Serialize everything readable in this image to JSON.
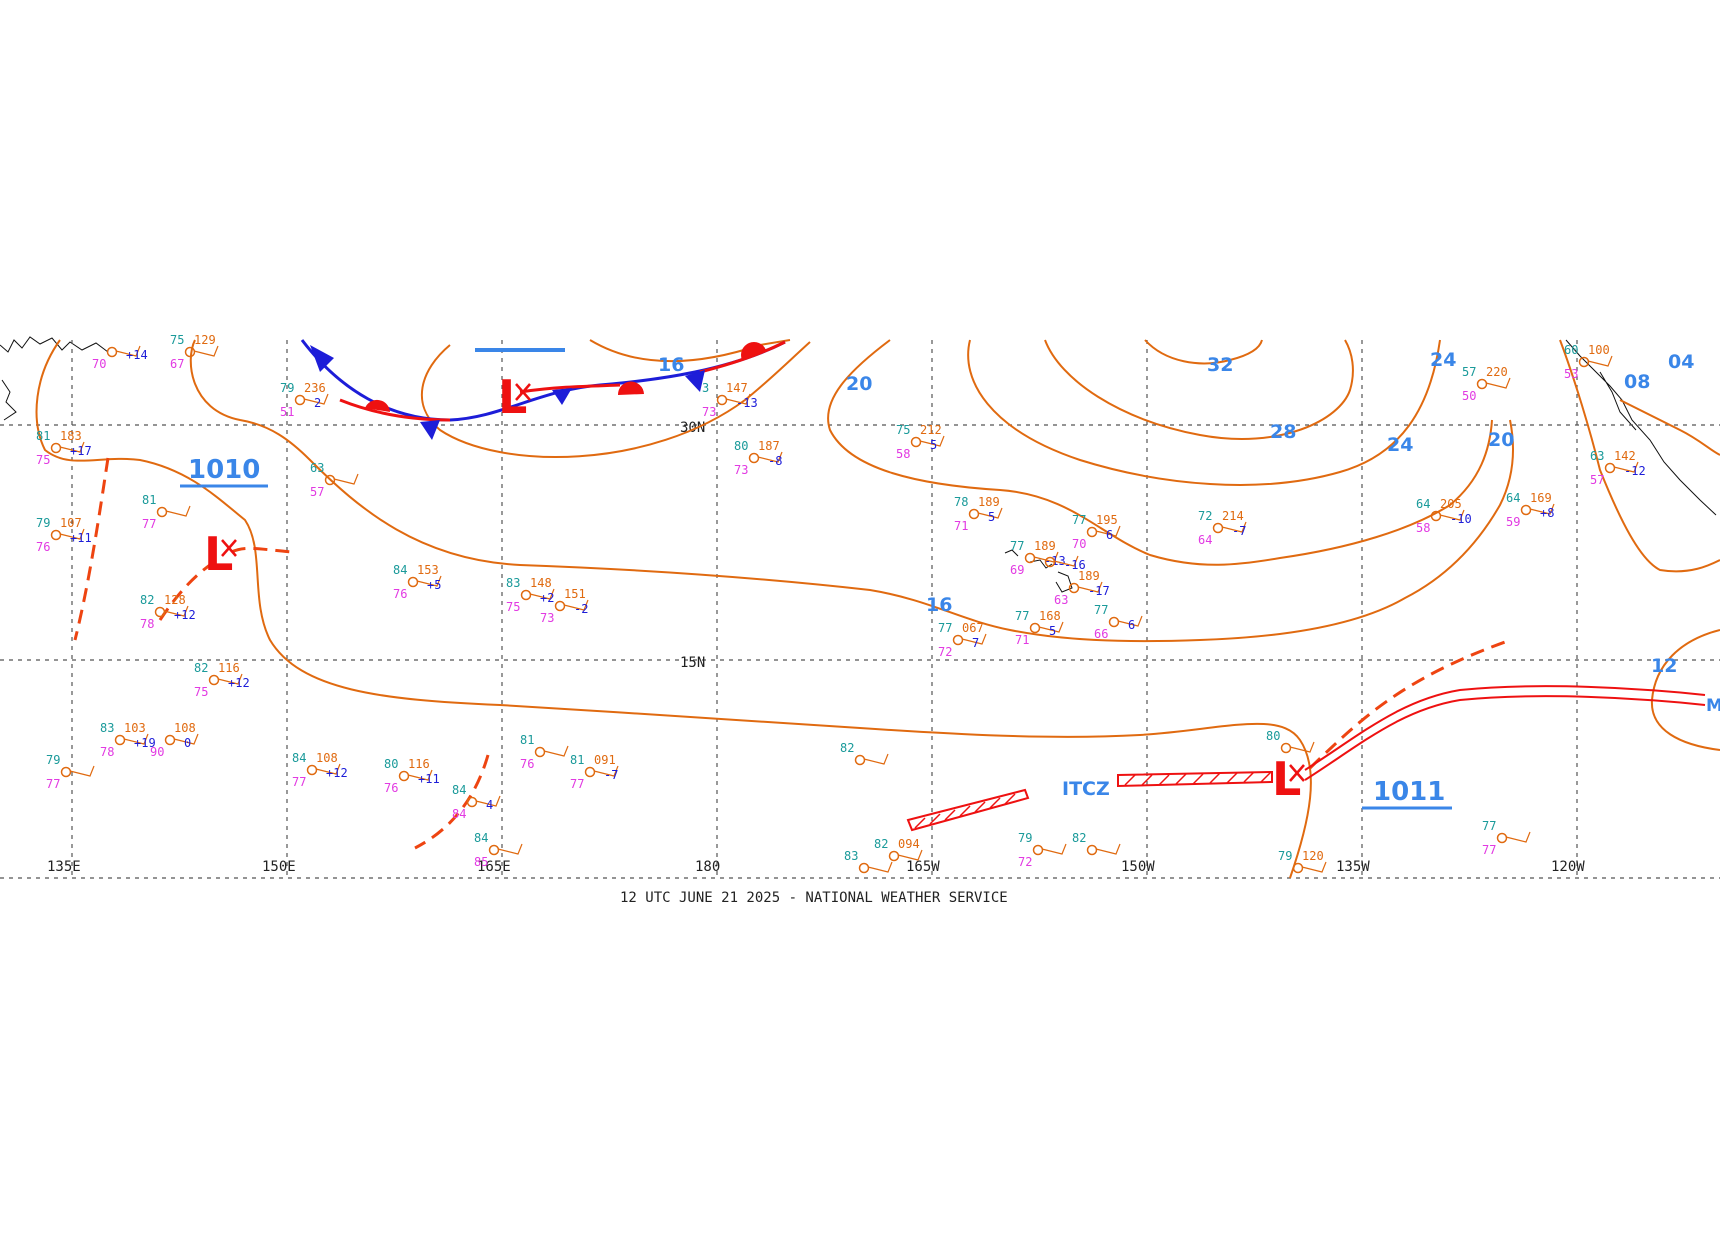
{
  "footer": {
    "caption": "12 UTC JUNE 21 2025 - NATIONAL WEATHER SERVICE"
  },
  "colors": {
    "isobar": "#e06a10",
    "isobar_label": "#3a86e8",
    "front_cold": "#1d1dd8",
    "front_warm": "#ee1111",
    "low": "#ee1111",
    "grid": "#555555",
    "temp": "#1a9a9a",
    "dew": "#e23ae2",
    "pressure": "#e06a10",
    "tendency": "#1d1dd8",
    "coast": "#111111"
  },
  "grid": {
    "longitudes": [
      "135E",
      "150E",
      "165E",
      "180",
      "165W",
      "150W",
      "135W",
      "120W"
    ],
    "latitudes": [
      "30N",
      "15N"
    ]
  },
  "isobar_labels": [
    "16",
    "20",
    "32",
    "28",
    "24",
    "24",
    "20",
    "16",
    "12",
    "08"
  ],
  "pressure_centers": [
    "1010",
    "1011"
  ],
  "lows": [
    "L",
    "L",
    "L"
  ],
  "zone_label": "ITCZ",
  "partial_labels": [
    "04",
    "M"
  ],
  "stations": [
    {
      "t": "81",
      "p": "183",
      "d": "75",
      "tend": "+17"
    },
    {
      "t": "79",
      "p": "107",
      "d": "76",
      "tend": "+11"
    },
    {
      "t": "81",
      "p": "",
      "d": "77",
      "tend": ""
    },
    {
      "t": "82",
      "p": "128",
      "d": "78",
      "tend": "+12"
    },
    {
      "t": "82",
      "p": "116",
      "d": "75",
      "tend": "+12"
    },
    {
      "t": "83",
      "p": "103",
      "d": "78",
      "tend": "+19"
    },
    {
      "t": "",
      "p": "108",
      "d": "90",
      "tend": "0"
    },
    {
      "t": "79",
      "p": "",
      "d": "77",
      "tend": ""
    },
    {
      "t": "79",
      "p": "236",
      "d": "51",
      "tend": "2"
    },
    {
      "t": "63",
      "p": "",
      "d": "57",
      "tend": ""
    },
    {
      "t": "84",
      "p": "153",
      "d": "76",
      "tend": "+5"
    },
    {
      "t": "83",
      "p": "148",
      "d": "75",
      "tend": "+2"
    },
    {
      "t": "",
      "p": "151",
      "d": "73",
      "tend": "-2"
    },
    {
      "t": "84",
      "p": "108",
      "d": "77",
      "tend": "+12"
    },
    {
      "t": "80",
      "p": "116",
      "d": "76",
      "tend": "+11"
    },
    {
      "t": "81",
      "p": "",
      "d": "76",
      "tend": ""
    },
    {
      "t": "81",
      "p": "091",
      "d": "77",
      "tend": "-7"
    },
    {
      "t": "84",
      "p": "",
      "d": "84",
      "tend": "4"
    },
    {
      "t": "84",
      "p": "",
      "d": "85",
      "tend": ""
    },
    {
      "t": "3",
      "p": "147",
      "d": "73",
      "tend": "-13"
    },
    {
      "t": "80",
      "p": "187",
      "d": "73",
      "tend": "-8"
    },
    {
      "t": "82",
      "p": "",
      "d": "",
      "tend": ""
    },
    {
      "t": "75",
      "p": "212",
      "d": "58",
      "tend": "5"
    },
    {
      "t": "78",
      "p": "189",
      "d": "71",
      "tend": "5"
    },
    {
      "t": "77",
      "p": "189",
      "d": "69",
      "tend": "-13"
    },
    {
      "t": "77",
      "p": "195",
      "d": "70",
      "tend": "6"
    },
    {
      "t": "72",
      "p": "214",
      "d": "64",
      "tend": "-7"
    },
    {
      "t": "",
      "p": "189",
      "d": "63",
      "tend": "-17"
    },
    {
      "t": "77",
      "p": "067",
      "d": "72",
      "tend": "7"
    },
    {
      "t": "77",
      "p": "168",
      "d": "71",
      "tend": "5"
    },
    {
      "t": "77",
      "p": "",
      "d": "66",
      "tend": "6"
    },
    {
      "t": "64",
      "p": "205",
      "d": "58",
      "tend": "-10"
    },
    {
      "t": "64",
      "p": "169",
      "d": "59",
      "tend": "+8"
    },
    {
      "t": "57",
      "p": "220",
      "d": "50",
      "tend": ""
    },
    {
      "t": "63",
      "p": "142",
      "d": "57",
      "tend": "-12"
    },
    {
      "t": "80",
      "p": "",
      "d": "",
      "tend": ""
    },
    {
      "t": "83",
      "p": "",
      "d": "",
      "tend": ""
    },
    {
      "t": "82",
      "p": "094",
      "d": "",
      "tend": ""
    },
    {
      "t": "79",
      "p": "",
      "d": "72",
      "tend": ""
    },
    {
      "t": "82",
      "p": "",
      "d": "",
      "tend": ""
    },
    {
      "t": "79",
      "p": "120",
      "d": "",
      "tend": ""
    },
    {
      "t": "77",
      "p": "",
      "d": "77",
      "tend": ""
    },
    {
      "t": "75",
      "p": "129",
      "d": "67",
      "tend": ""
    },
    {
      "t": "",
      "p": "",
      "d": "70",
      "tend": "+14"
    },
    {
      "t": "60",
      "p": "100",
      "d": "53",
      "tend": ""
    },
    {
      "t": "",
      "p": "",
      "d": "",
      "tend": "-16"
    }
  ]
}
